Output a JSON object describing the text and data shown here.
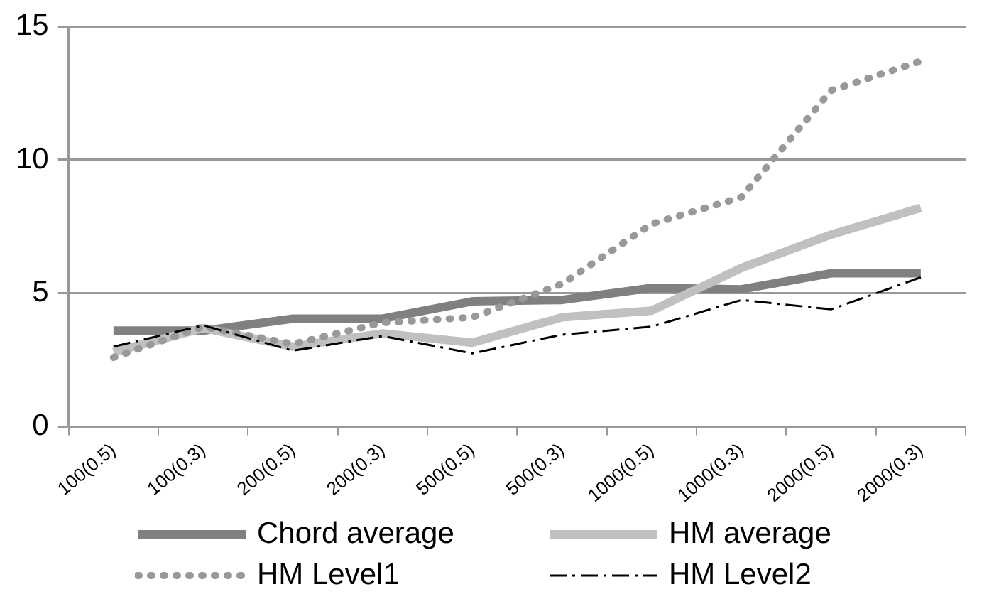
{
  "chart_data": {
    "type": "line",
    "categories": [
      "100(0.5)",
      "100(0.3)",
      "200(0.5)",
      "200(0.3)",
      "500(0.5)",
      "500(0.3)",
      "1000(0.5)",
      "1000(0.3)",
      "2000(0.5)",
      "2000(0.3)"
    ],
    "series": [
      {
        "name": "Chord average",
        "color": "#808080",
        "line_style": "solid",
        "values": [
          3.6,
          3.6,
          4.05,
          4.05,
          4.7,
          4.75,
          5.2,
          5.15,
          5.75,
          5.75
        ]
      },
      {
        "name": "HM average",
        "color": "#c0c0c0",
        "line_style": "solid",
        "values": [
          2.8,
          3.7,
          3.0,
          3.5,
          3.15,
          4.1,
          4.35,
          5.95,
          7.2,
          8.2
        ]
      },
      {
        "name": "HM Level1",
        "color": "#999999",
        "line_style": "dotted",
        "values": [
          2.6,
          3.75,
          3.1,
          3.9,
          4.1,
          5.35,
          7.6,
          8.6,
          12.6,
          13.7
        ]
      },
      {
        "name": "HM Level2",
        "color": "#000000",
        "line_style": "dashed",
        "values": [
          3.0,
          3.8,
          2.85,
          3.4,
          2.75,
          3.45,
          3.75,
          4.75,
          4.4,
          5.6
        ]
      }
    ],
    "ylim": [
      0,
      15
    ],
    "yticks": [
      0,
      5,
      10,
      15
    ],
    "grid": "y",
    "legend": "bottom",
    "marker": "none"
  }
}
